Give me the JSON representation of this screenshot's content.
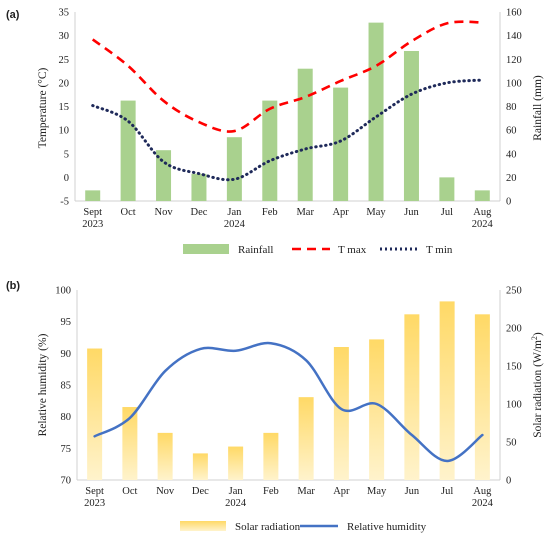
{
  "chart_data": [
    {
      "panel": "(a)",
      "type": "bar+line",
      "categories": [
        [
          "Sept",
          "2023"
        ],
        [
          "Oct",
          ""
        ],
        [
          "Nov",
          ""
        ],
        [
          "Dec",
          ""
        ],
        [
          "Jan",
          "2024"
        ],
        [
          "Feb",
          ""
        ],
        [
          "Mar",
          ""
        ],
        [
          "Apr",
          ""
        ],
        [
          "May",
          ""
        ],
        [
          "Jun",
          ""
        ],
        [
          "Jul",
          ""
        ],
        [
          "Aug",
          "2024"
        ]
      ],
      "ylabel_left": "Temperature (°C)",
      "ylabel_right": "Rainfall (mm)",
      "ylim_left": [
        -5,
        35
      ],
      "yticks_left": [
        -5,
        0,
        5,
        10,
        15,
        20,
        25,
        30,
        35
      ],
      "ylim_right": [
        0,
        160
      ],
      "yticks_right": [
        0,
        20,
        40,
        60,
        80,
        100,
        120,
        140,
        160
      ],
      "bar_series": {
        "name": "Rainfall",
        "axis": "right",
        "color": "#a9d18e",
        "values": [
          9,
          85,
          43,
          23,
          54,
          85,
          112,
          96,
          151,
          127,
          20,
          9
        ]
      },
      "line_series": [
        {
          "name": "T max",
          "axis": "left",
          "color": "#ff0000",
          "style": "dash",
          "values": [
            29.2,
            23.6,
            16.2,
            11.7,
            9.8,
            14.5,
            17.0,
            20.4,
            23.6,
            28.8,
            32.6,
            32.8
          ]
        },
        {
          "name": "T min",
          "axis": "left",
          "color": "#1f2a5a",
          "style": "dot",
          "values": [
            15.2,
            11.9,
            3.3,
            0.8,
            -0.4,
            3.5,
            6.0,
            7.7,
            12.8,
            17.6,
            20.0,
            20.6
          ]
        }
      ],
      "legend_position": "bottom"
    },
    {
      "panel": "(b)",
      "type": "bar+line",
      "categories": [
        [
          "Sept",
          "2023"
        ],
        [
          "Oct",
          ""
        ],
        [
          "Nov",
          ""
        ],
        [
          "Dec",
          ""
        ],
        [
          "Jan",
          "2024"
        ],
        [
          "Feb",
          ""
        ],
        [
          "Mar",
          ""
        ],
        [
          "Apr",
          ""
        ],
        [
          "May",
          ""
        ],
        [
          "Jun",
          ""
        ],
        [
          "Jul",
          ""
        ],
        [
          "Aug",
          "2024"
        ]
      ],
      "ylabel_left": "Relative humidity (%)",
      "ylabel_right_main": "Solar radiation (W/m",
      "ylabel_right_sup": "2",
      "ylabel_right_end": ")",
      "ylim_left": [
        70,
        100
      ],
      "yticks_left": [
        70,
        75,
        80,
        85,
        90,
        95,
        100
      ],
      "ylim_right": [
        0,
        250
      ],
      "yticks_right": [
        0,
        50,
        100,
        150,
        200,
        250
      ],
      "bar_series": {
        "name": "Solar radiation",
        "axis": "right",
        "color_top": "#ffd966",
        "color_bottom": "#fff3cc",
        "values": [
          173,
          96,
          62,
          35,
          44,
          62,
          109,
          175,
          185,
          218,
          235,
          218
        ]
      },
      "line_series": [
        {
          "name": "Relative humidity",
          "axis": "left",
          "color": "#4472c4",
          "values": [
            76.9,
            79.8,
            87.2,
            90.7,
            90.4,
            91.6,
            88.9,
            81.2,
            82.0,
            77.1,
            73.0,
            77.1
          ]
        }
      ],
      "legend_position": "bottom"
    }
  ]
}
